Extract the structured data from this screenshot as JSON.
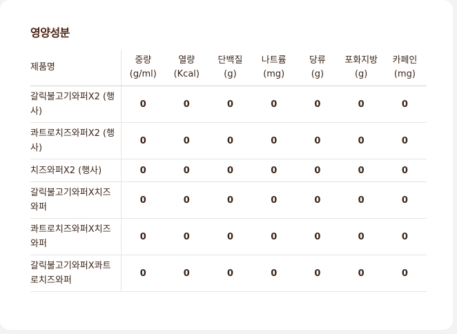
{
  "title": "영양성분",
  "columns": {
    "name": "제품명",
    "weight": [
      "중량",
      "(g/ml)"
    ],
    "calories": [
      "열량",
      "(Kcal)"
    ],
    "protein": [
      "단백질",
      "(g)"
    ],
    "sodium": [
      "나트륨",
      "(mg)"
    ],
    "sugar": [
      "당류",
      "(g)"
    ],
    "satfat": [
      "포화지방",
      "(g)"
    ],
    "caffeine": [
      "카페인",
      "(mg)"
    ]
  },
  "rows": [
    {
      "name": "갈릭불고기와퍼X2 (행사)",
      "values": [
        "0",
        "0",
        "0",
        "0",
        "0",
        "0",
        "0"
      ]
    },
    {
      "name": "콰트로치즈와퍼X2 (행사)",
      "values": [
        "0",
        "0",
        "0",
        "0",
        "0",
        "0",
        "0"
      ]
    },
    {
      "name": "치즈와퍼X2 (행사)",
      "values": [
        "0",
        "0",
        "0",
        "0",
        "0",
        "0",
        "0"
      ]
    },
    {
      "name": "갈릭불고기와퍼X치즈와퍼",
      "values": [
        "0",
        "0",
        "0",
        "0",
        "0",
        "0",
        "0"
      ]
    },
    {
      "name": "콰트로치즈와퍼X치즈와퍼",
      "values": [
        "0",
        "0",
        "0",
        "0",
        "0",
        "0",
        "0"
      ]
    },
    {
      "name": "갈릭불고기와퍼X콰트로치즈와퍼",
      "values": [
        "0",
        "0",
        "0",
        "0",
        "0",
        "0",
        "0"
      ]
    }
  ]
}
